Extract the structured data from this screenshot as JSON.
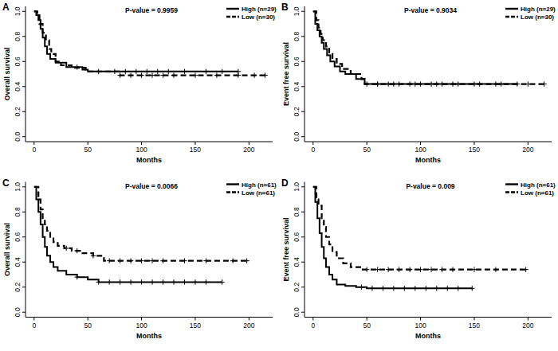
{
  "chart_data": [
    {
      "type": "step",
      "title": "A",
      "annotation": "P-value = 0.9959",
      "x_label": "Months",
      "y_label": "Overall survival",
      "xlim": [
        -8,
        222
      ],
      "ylim": [
        -0.04,
        1.04
      ],
      "xticks": [
        0,
        50,
        100,
        150,
        200
      ],
      "yticks": [
        {
          "value": 0,
          "label": "0.0"
        },
        0.2,
        0.4,
        0.6,
        0.8,
        {
          "value": 1,
          "label": "1.0"
        }
      ],
      "legend": "top-right",
      "marker": "plus",
      "series": [
        {
          "name": "High (n=29)",
          "color": "#000000",
          "line_style": "solid",
          "x": [
            0,
            2,
            4,
            6,
            8,
            10,
            12,
            15,
            20,
            30,
            45,
            50,
            190
          ],
          "values": [
            1,
            0.97,
            0.93,
            0.86,
            0.79,
            0.72,
            0.66,
            0.62,
            0.59,
            0.555,
            0.535,
            0.52,
            0.52
          ],
          "censored": [
            40,
            60,
            75,
            85,
            95,
            105,
            115,
            125,
            140,
            160,
            175,
            190
          ]
        },
        {
          "name": "Low (n=30)",
          "color": "#000000",
          "line_style": "dashed",
          "x": [
            0,
            3,
            5,
            8,
            11,
            14,
            16,
            20,
            25,
            35,
            48,
            80,
            215
          ],
          "values": [
            1,
            0.97,
            0.9,
            0.83,
            0.77,
            0.7,
            0.66,
            0.6,
            0.57,
            0.55,
            0.52,
            0.49,
            0.49
          ],
          "censored": [
            80,
            90,
            100,
            110,
            120,
            130,
            150,
            170,
            190,
            205,
            215
          ]
        }
      ]
    },
    {
      "type": "step",
      "title": "B",
      "annotation": "P-value = 0.9034",
      "x_label": "Months",
      "y_label": "Event free survival",
      "xlim": [
        -8,
        222
      ],
      "ylim": [
        -0.04,
        1.04
      ],
      "xticks": [
        0,
        50,
        100,
        150,
        200
      ],
      "yticks": [
        {
          "value": 0,
          "label": "0.0"
        },
        0.2,
        0.4,
        0.6,
        0.8,
        {
          "value": 1,
          "label": "1.0"
        }
      ],
      "legend": "top-right",
      "marker": "plus",
      "series": [
        {
          "name": "High (n=29)",
          "color": "#000000",
          "line_style": "solid",
          "x": [
            0,
            2,
            4,
            6,
            8,
            10,
            13,
            16,
            20,
            25,
            30,
            40,
            48,
            190
          ],
          "values": [
            1,
            0.9,
            0.85,
            0.8,
            0.75,
            0.7,
            0.65,
            0.6,
            0.56,
            0.52,
            0.5,
            0.46,
            0.42,
            0.42
          ],
          "censored": [
            50,
            60,
            70,
            80,
            90,
            100,
            110,
            120,
            130,
            150,
            170,
            190
          ]
        },
        {
          "name": "Low (n=30)",
          "color": "#000000",
          "line_style": "dashed",
          "x": [
            0,
            3,
            5,
            7,
            9,
            12,
            15,
            18,
            22,
            27,
            35,
            45,
            48,
            215
          ],
          "values": [
            1,
            0.93,
            0.87,
            0.82,
            0.77,
            0.72,
            0.66,
            0.62,
            0.58,
            0.54,
            0.5,
            0.46,
            0.42,
            0.42
          ],
          "censored": [
            60,
            75,
            95,
            115,
            135,
            155,
            175,
            200,
            215
          ]
        }
      ]
    },
    {
      "type": "step",
      "title": "C",
      "annotation": "P-value = 0.0066",
      "x_label": "Months",
      "y_label": "Overall survival",
      "xlim": [
        -8,
        222
      ],
      "ylim": [
        -0.04,
        1.04
      ],
      "xticks": [
        0,
        50,
        100,
        150,
        200
      ],
      "yticks": [
        {
          "value": 0,
          "label": "0.0"
        },
        0.2,
        0.4,
        0.6,
        0.8,
        {
          "value": 1,
          "label": "1.0"
        }
      ],
      "legend": "top-right",
      "marker": "plus",
      "series": [
        {
          "name": "High (n=61)",
          "color": "#000000",
          "line_style": "solid",
          "x": [
            0,
            2,
            4,
            6,
            8,
            10,
            12,
            15,
            18,
            22,
            30,
            40,
            50,
            60,
            175
          ],
          "values": [
            1,
            0.9,
            0.8,
            0.7,
            0.6,
            0.52,
            0.45,
            0.4,
            0.36,
            0.33,
            0.3,
            0.28,
            0.26,
            0.24,
            0.24
          ],
          "censored": [
            40,
            60,
            70,
            80,
            90,
            100,
            110,
            120,
            130,
            140,
            150,
            160,
            175
          ]
        },
        {
          "name": "Low (n=61)",
          "color": "#000000",
          "line_style": "dashed",
          "x": [
            0,
            4,
            6,
            8,
            10,
            12,
            15,
            18,
            22,
            28,
            35,
            45,
            55,
            65,
            198
          ],
          "values": [
            1,
            0.9,
            0.82,
            0.75,
            0.7,
            0.65,
            0.6,
            0.56,
            0.53,
            0.51,
            0.49,
            0.47,
            0.45,
            0.41,
            0.41
          ],
          "censored": [
            30,
            40,
            55,
            70,
            80,
            90,
            100,
            110,
            120,
            140,
            160,
            185,
            198
          ]
        }
      ]
    },
    {
      "type": "step",
      "title": "D",
      "annotation": "P-value = 0.009",
      "x_label": "Months",
      "y_label": "Event free survival",
      "xlim": [
        -8,
        222
      ],
      "ylim": [
        -0.04,
        1.04
      ],
      "xticks": [
        0,
        50,
        100,
        150,
        200
      ],
      "yticks": [
        {
          "value": 0,
          "label": "0.0"
        },
        0.2,
        0.4,
        0.6,
        0.8,
        {
          "value": 1,
          "label": "1.0"
        }
      ],
      "legend": "top-right",
      "marker": "plus",
      "series": [
        {
          "name": "High (n=61)",
          "color": "#000000",
          "line_style": "solid",
          "x": [
            0,
            2,
            4,
            6,
            8,
            10,
            12,
            15,
            18,
            22,
            30,
            40,
            50,
            148
          ],
          "values": [
            1,
            0.88,
            0.75,
            0.63,
            0.52,
            0.43,
            0.36,
            0.3,
            0.26,
            0.22,
            0.21,
            0.2,
            0.19,
            0.19
          ],
          "censored": [
            45,
            55,
            65,
            75,
            85,
            95,
            105,
            115,
            125,
            135,
            148
          ]
        },
        {
          "name": "Low (n=61)",
          "color": "#000000",
          "line_style": "dashed",
          "x": [
            0,
            3,
            5,
            8,
            10,
            12,
            15,
            18,
            22,
            28,
            35,
            45,
            198
          ],
          "values": [
            1,
            0.9,
            0.85,
            0.75,
            0.68,
            0.6,
            0.54,
            0.48,
            0.43,
            0.39,
            0.36,
            0.34,
            0.34
          ],
          "censored": [
            50,
            60,
            70,
            80,
            90,
            100,
            110,
            120,
            130,
            150,
            170,
            198
          ]
        }
      ]
    }
  ]
}
